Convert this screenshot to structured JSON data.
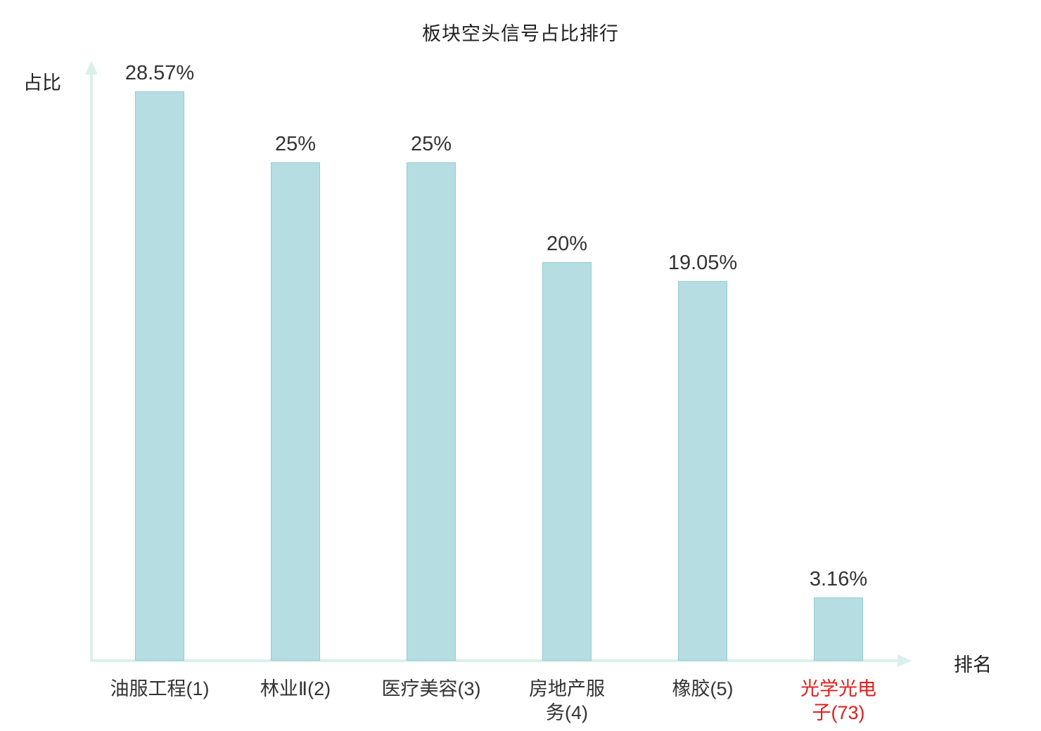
{
  "chart_data": {
    "type": "bar",
    "title": "板块空头信号占比排行",
    "ylabel": "占比",
    "xlabel": "排名",
    "categories": [
      "油服工程(1)",
      "林业Ⅱ(2)",
      "医疗美容(3)",
      "房地产服\n务(4)",
      "橡胶(5)",
      "光学光电\n子(73)"
    ],
    "values": [
      28.57,
      25,
      25,
      20,
      19.05,
      3.16
    ],
    "value_labels": [
      "28.57%",
      "25%",
      "25%",
      "20%",
      "19.05%",
      "3.16%"
    ],
    "highlight_index": 5,
    "bar_fill_color": "#b6dde1",
    "bar_border_color": "#93ccd3",
    "axis_color": "#daf0ea",
    "text_color": "#333333",
    "highlight_text_color": "#e01e1e",
    "ylim": [
      0,
      30
    ],
    "grid": false,
    "legend": "none"
  }
}
